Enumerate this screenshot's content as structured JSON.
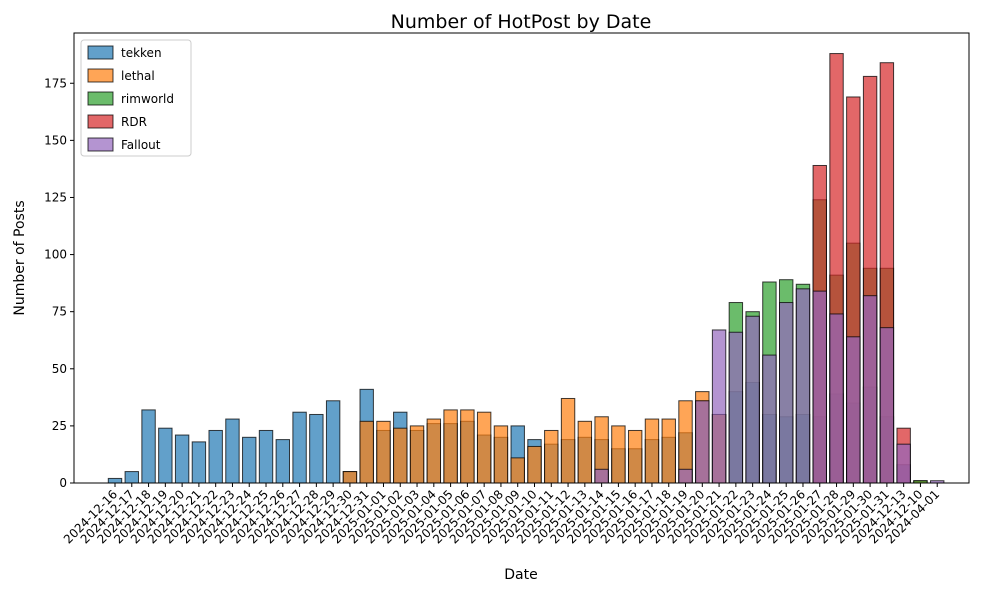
{
  "chart_data": {
    "type": "bar",
    "title": "Number of HotPost by Date",
    "xlabel": "Date",
    "ylabel": "Number of Posts",
    "ylim": [
      0,
      197
    ],
    "yticks": [
      0,
      25,
      50,
      75,
      100,
      125,
      150,
      175
    ],
    "legend_position": "top-left",
    "categories": [
      "2024-12-16",
      "2024-12-17",
      "2024-12-18",
      "2024-12-19",
      "2024-12-20",
      "2024-12-21",
      "2024-12-22",
      "2024-12-23",
      "2024-12-24",
      "2024-12-25",
      "2024-12-26",
      "2024-12-27",
      "2024-12-28",
      "2024-12-29",
      "2024-12-30",
      "2024-12-31",
      "2025-01-01",
      "2025-01-02",
      "2025-01-03",
      "2025-01-04",
      "2025-01-05",
      "2025-01-06",
      "2025-01-07",
      "2025-01-08",
      "2025-01-09",
      "2025-01-10",
      "2025-01-11",
      "2025-01-12",
      "2025-01-13",
      "2025-01-14",
      "2025-01-15",
      "2025-01-16",
      "2025-01-17",
      "2025-01-18",
      "2025-01-19",
      "2025-01-20",
      "2025-01-21",
      "2025-01-22",
      "2025-01-23",
      "2025-01-24",
      "2025-01-25",
      "2025-01-26",
      "2025-01-27",
      "2025-01-28",
      "2025-01-29",
      "2025-01-30",
      "2025-01-31",
      "2024-12-13",
      "2024-12-10",
      "2024-04-01"
    ],
    "series": [
      {
        "name": "tekken",
        "color": "#1f77b4",
        "values": [
          2,
          5,
          32,
          24,
          21,
          18,
          23,
          28,
          20,
          23,
          19,
          31,
          30,
          36,
          5,
          41,
          23,
          31,
          23,
          26,
          26,
          27,
          21,
          20,
          25,
          19,
          17,
          19,
          20,
          19,
          15,
          15,
          19,
          20,
          22,
          36,
          30,
          40,
          44,
          30,
          29,
          30,
          29,
          39,
          35,
          42,
          29,
          8,
          0,
          0
        ]
      },
      {
        "name": "lethal",
        "color": "#ff7f0e",
        "values": [
          0,
          0,
          0,
          0,
          0,
          0,
          0,
          0,
          0,
          0,
          0,
          0,
          0,
          0,
          5,
          27,
          27,
          24,
          25,
          28,
          32,
          32,
          31,
          25,
          11,
          16,
          23,
          37,
          27,
          29,
          25,
          23,
          28,
          28,
          36,
          40,
          30,
          0,
          0,
          0,
          0,
          0,
          0,
          0,
          0,
          0,
          0,
          0,
          1,
          0
        ]
      },
      {
        "name": "rimworld",
        "color": "#2ca02c",
        "values": [
          0,
          0,
          0,
          0,
          0,
          0,
          0,
          0,
          0,
          0,
          0,
          0,
          0,
          0,
          0,
          0,
          0,
          0,
          0,
          0,
          0,
          0,
          0,
          0,
          0,
          0,
          0,
          0,
          0,
          0,
          0,
          0,
          0,
          0,
          0,
          0,
          0,
          79,
          75,
          88,
          89,
          87,
          124,
          91,
          105,
          94,
          94,
          0,
          1,
          0
        ]
      },
      {
        "name": "RDR",
        "color": "#d62728",
        "values": [
          0,
          0,
          0,
          0,
          0,
          0,
          0,
          0,
          0,
          0,
          0,
          0,
          0,
          0,
          0,
          0,
          0,
          0,
          0,
          0,
          0,
          0,
          0,
          0,
          0,
          0,
          0,
          0,
          0,
          0,
          0,
          0,
          0,
          0,
          0,
          0,
          0,
          0,
          0,
          0,
          0,
          0,
          139,
          188,
          169,
          178,
          184,
          24,
          0,
          0
        ]
      },
      {
        "name": "Fallout",
        "color": "#9467bd",
        "values": [
          0,
          0,
          0,
          0,
          0,
          0,
          0,
          0,
          0,
          0,
          0,
          0,
          0,
          0,
          0,
          0,
          0,
          0,
          0,
          0,
          0,
          0,
          0,
          0,
          0,
          0,
          0,
          0,
          0,
          6,
          0,
          0,
          0,
          0,
          6,
          36,
          67,
          66,
          73,
          56,
          79,
          85,
          84,
          74,
          64,
          82,
          68,
          17,
          0,
          1
        ]
      }
    ]
  }
}
